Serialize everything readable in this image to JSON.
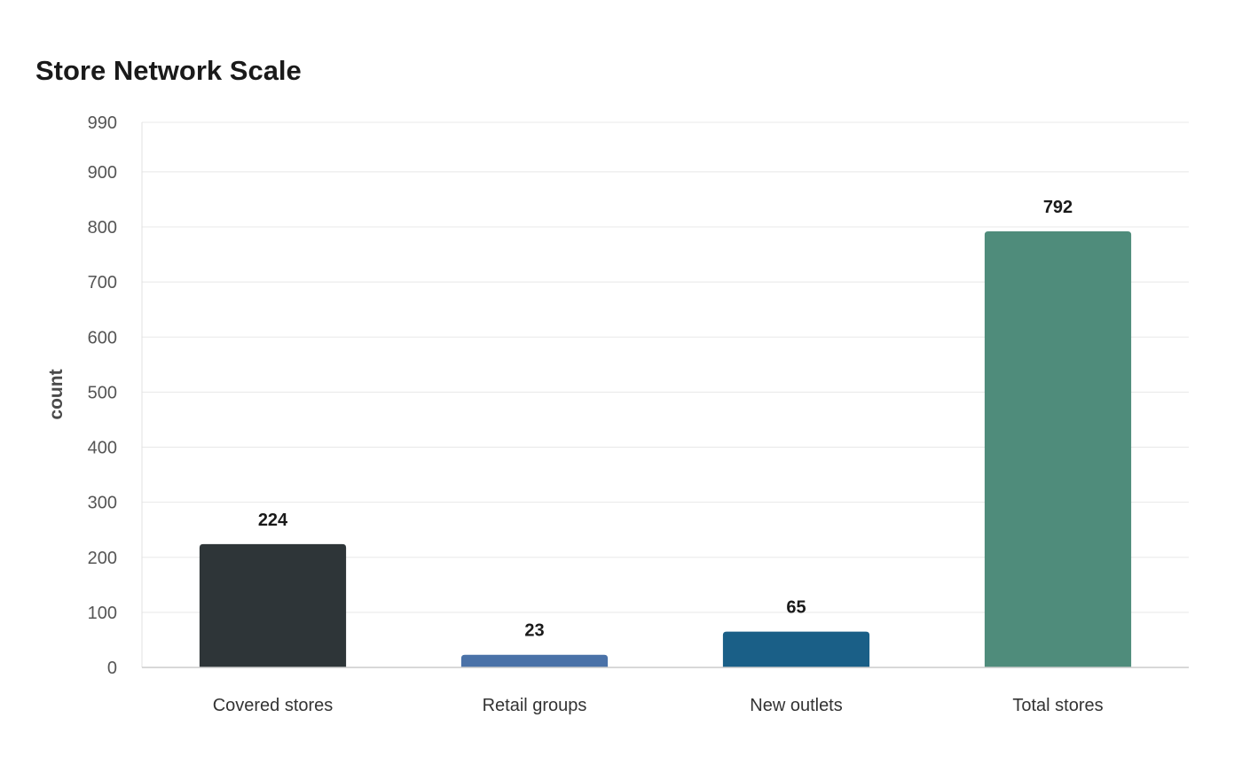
{
  "chart_data": {
    "type": "bar",
    "title": "Store Network Scale",
    "xlabel": "",
    "ylabel": "count",
    "categories": [
      "Covered stores",
      "Retail groups",
      "New outlets",
      "Total stores"
    ],
    "values": [
      224,
      23,
      65,
      792
    ],
    "data_labels": [
      "224",
      "23",
      "65",
      "792"
    ],
    "colors": [
      "#2e3538",
      "#4a72a8",
      "#1a5f87",
      "#4f8c7b"
    ],
    "ylim": [
      0,
      990
    ],
    "yticks": [
      0,
      100,
      200,
      300,
      400,
      500,
      600,
      700,
      800,
      900,
      990
    ],
    "ytick_labels": [
      "0",
      "100",
      "200",
      "300",
      "400",
      "500",
      "600",
      "700",
      "800",
      "900",
      "990"
    ],
    "grid": true,
    "legend": "none"
  }
}
